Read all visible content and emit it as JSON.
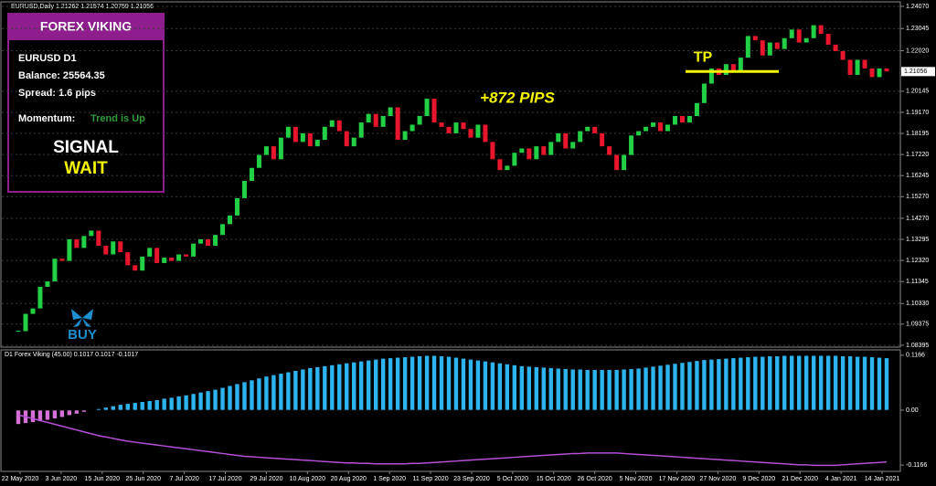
{
  "header": "EURUSD,Daily  1.21262 1.21574 1.20759 1.21056",
  "panel": {
    "title": "FOREX VIKING",
    "symbol": "EURUSD D1",
    "balance": "Balance: 25564.35",
    "spread": "Spread: 1.6 pips",
    "momentum_label": "Momentum:",
    "momentum_value": "Trend is Up",
    "signal_label": "SIGNAL",
    "signal_value": "WAIT"
  },
  "chart_data": [
    {
      "type": "candlestick",
      "up_color": "#22d046",
      "down_color": "#e8162c",
      "close": [
        1.0905,
        1.0985,
        1.101,
        1.111,
        1.1135,
        1.124,
        1.123,
        1.133,
        1.129,
        1.1345,
        1.137,
        1.13,
        1.126,
        1.132,
        1.127,
        1.121,
        1.1185,
        1.125,
        1.129,
        1.122,
        1.1245,
        1.123,
        1.126,
        1.125,
        1.131,
        1.133,
        1.13,
        1.135,
        1.14,
        1.144,
        1.152,
        1.16,
        1.166,
        1.172,
        1.176,
        1.17,
        1.18,
        1.185,
        1.178,
        1.182,
        1.176,
        1.179,
        1.185,
        1.188,
        1.183,
        1.176,
        1.18,
        1.187,
        1.191,
        1.185,
        1.19,
        1.194,
        1.179,
        1.183,
        1.186,
        1.19,
        1.198,
        1.187,
        1.185,
        1.182,
        1.187,
        1.184,
        1.18,
        1.186,
        1.178,
        1.17,
        1.165,
        1.167,
        1.173,
        1.175,
        1.17,
        1.176,
        1.172,
        1.178,
        1.182,
        1.175,
        1.178,
        1.183,
        1.185,
        1.182,
        1.176,
        1.172,
        1.165,
        1.172,
        1.181,
        1.183,
        1.185,
        1.187,
        1.183,
        1.186,
        1.19,
        1.187,
        1.19,
        1.196,
        1.205,
        1.212,
        1.209,
        1.214,
        1.211,
        1.217,
        1.227,
        1.225,
        1.218,
        1.224,
        1.221,
        1.226,
        1.23,
        1.224,
        1.226,
        1.232,
        1.228,
        1.223,
        1.22,
        1.216,
        1.209,
        1.216,
        1.212,
        1.208,
        1.212,
        1.2106
      ],
      "ylim": [
        1.08395,
        1.2407
      ],
      "yticks": [
        {
          "value": 1.2407,
          "label": "1.24070"
        },
        {
          "value": 1.23045,
          "label": "1.23045"
        },
        {
          "value": 1.2202,
          "label": "1.22020"
        },
        {
          "value": 1.20145,
          "label": "1.20145"
        },
        {
          "value": 1.1917,
          "label": "1.19170"
        },
        {
          "value": 1.18195,
          "label": "1.18195"
        },
        {
          "value": 1.1722,
          "label": "1.17220"
        },
        {
          "value": 1.16245,
          "label": "1.16245"
        },
        {
          "value": 1.1527,
          "label": "1.15270"
        },
        {
          "value": 1.1427,
          "label": "1.14270"
        },
        {
          "value": 1.13295,
          "label": "1.13295"
        },
        {
          "value": 1.1232,
          "label": "1.12320"
        },
        {
          "value": 1.11345,
          "label": "1.11345"
        },
        {
          "value": 1.1033,
          "label": "1.10330"
        },
        {
          "value": 1.09375,
          "label": "1.09375"
        },
        {
          "value": 1.08395,
          "label": "1.08395"
        }
      ],
      "last_price": 1.21056,
      "tp_level": 1.2106,
      "tp_label": "TP",
      "pips_label": "+872 PIPS",
      "signal_label": "BUY",
      "xtick_labels": [
        "22 May 2020",
        "3 Jun 2020",
        "15 Jun 2020",
        "25 Jun 2020",
        "7 Jul 2020",
        "17 Jul 2020",
        "29 Jul 2020",
        "10 Aug 2020",
        "20 Aug 2020",
        "1 Sep 2020",
        "11 Sep 2020",
        "23 Sep 2020",
        "5 Oct 2020",
        "15 Oct 2020",
        "26 Oct 2020",
        "5 Nov 2020",
        "17 Nov 2020",
        "27 Nov 2020",
        "9 Dec 2020",
        "21 Dec 2020",
        "4 Jan 2021",
        "14 Jan 2021"
      ],
      "grid": true
    },
    {
      "type": "bar",
      "title": "D1 Forex Viking (45.00) 0.1017 0.1017 -0.1017",
      "series": [
        {
          "color": "#2db4ee",
          "negative_color": "#d66fd6",
          "values": [
            -0.03,
            -0.028,
            -0.026,
            -0.024,
            -0.021,
            -0.018,
            -0.015,
            -0.011,
            -0.008,
            -0.004,
            0.0,
            0.003,
            0.006,
            0.009,
            0.012,
            0.014,
            0.016,
            0.018,
            0.02,
            0.022,
            0.025,
            0.027,
            0.03,
            0.032,
            0.035,
            0.038,
            0.041,
            0.044,
            0.048,
            0.052,
            0.056,
            0.06,
            0.064,
            0.068,
            0.072,
            0.075,
            0.078,
            0.081,
            0.084,
            0.087,
            0.09,
            0.092,
            0.094,
            0.096,
            0.098,
            0.1,
            0.102,
            0.104,
            0.106,
            0.108,
            0.11,
            0.111,
            0.112,
            0.113,
            0.114,
            0.115,
            0.116,
            0.116,
            0.115,
            0.114,
            0.112,
            0.11,
            0.108,
            0.106,
            0.104,
            0.102,
            0.1,
            0.098,
            0.096,
            0.094,
            0.093,
            0.092,
            0.091,
            0.09,
            0.089,
            0.088,
            0.087,
            0.087,
            0.086,
            0.086,
            0.086,
            0.086,
            0.086,
            0.087,
            0.088,
            0.089,
            0.091,
            0.093,
            0.095,
            0.097,
            0.099,
            0.101,
            0.103,
            0.105,
            0.107,
            0.108,
            0.109,
            0.11,
            0.111,
            0.112,
            0.113,
            0.114,
            0.114,
            0.115,
            0.115,
            0.116,
            0.116,
            0.116,
            0.116,
            0.116,
            0.116,
            0.116,
            0.116,
            0.115,
            0.115,
            0.114,
            0.114,
            0.113,
            0.112,
            0.111
          ]
        },
        {
          "type": "line",
          "color": "#b44fd6",
          "values": [
            -0.01,
            -0.014,
            -0.018,
            -0.022,
            -0.026,
            -0.03,
            -0.034,
            -0.038,
            -0.042,
            -0.046,
            -0.05,
            -0.054,
            -0.057,
            -0.06,
            -0.063,
            -0.066,
            -0.068,
            -0.07,
            -0.072,
            -0.074,
            -0.076,
            -0.078,
            -0.08,
            -0.082,
            -0.084,
            -0.086,
            -0.088,
            -0.09,
            -0.092,
            -0.094,
            -0.096,
            -0.098,
            -0.099,
            -0.1,
            -0.101,
            -0.102,
            -0.103,
            -0.104,
            -0.105,
            -0.106,
            -0.107,
            -0.108,
            -0.109,
            -0.11,
            -0.111,
            -0.112,
            -0.112,
            -0.113,
            -0.113,
            -0.114,
            -0.114,
            -0.114,
            -0.114,
            -0.114,
            -0.113,
            -0.113,
            -0.112,
            -0.111,
            -0.11,
            -0.109,
            -0.108,
            -0.107,
            -0.106,
            -0.105,
            -0.104,
            -0.103,
            -0.102,
            -0.101,
            -0.1,
            -0.099,
            -0.098,
            -0.097,
            -0.096,
            -0.095,
            -0.094,
            -0.093,
            -0.092,
            -0.092,
            -0.091,
            -0.091,
            -0.091,
            -0.091,
            -0.091,
            -0.092,
            -0.093,
            -0.094,
            -0.095,
            -0.096,
            -0.097,
            -0.098,
            -0.099,
            -0.1,
            -0.101,
            -0.102,
            -0.103,
            -0.104,
            -0.105,
            -0.106,
            -0.107,
            -0.108,
            -0.109,
            -0.11,
            -0.111,
            -0.112,
            -0.113,
            -0.114,
            -0.115,
            -0.116,
            -0.116,
            -0.117,
            -0.117,
            -0.117,
            -0.117,
            -0.116,
            -0.115,
            -0.114,
            -0.113,
            -0.112,
            -0.111,
            -0.11
          ]
        }
      ],
      "ylim": [
        -0.128,
        0.128
      ],
      "yticks": [
        0.1166,
        {
          "value": 0,
          "label": "0.00"
        },
        -0.1166
      ]
    }
  ]
}
